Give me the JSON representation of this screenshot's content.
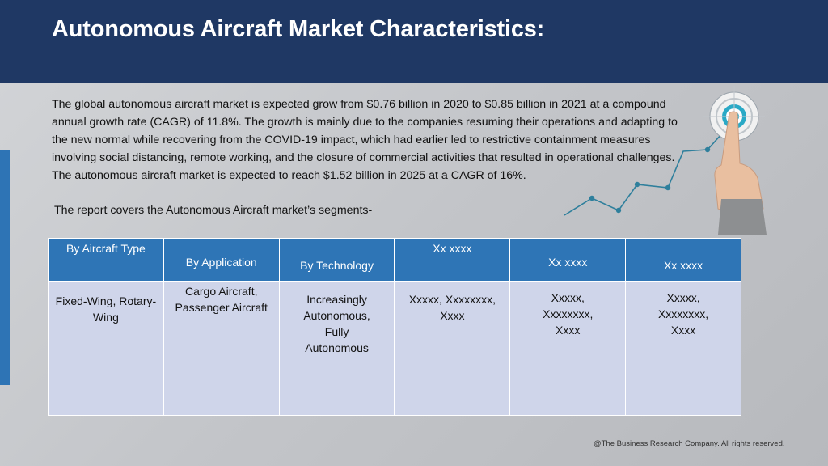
{
  "header": {
    "title": "Autonomous Aircraft Market Characteristics:"
  },
  "intro": {
    "paragraph": "The global autonomous aircraft market is expected grow from $0.76 billion in 2020 to $0.85 billion in 2021 at a compound annual growth rate (CAGR) of 11.8%. The growth is mainly due to the companies resuming their operations and adapting to the new normal while recovering from the COVID-19 impact, which had earlier led to restrictive containment measures involving social distancing, remote working, and the closure of commercial activities that resulted in operational challenges. The autonomous aircraft market is expected to reach $1.52 billion in 2025 at a CAGR of 16%.",
    "segments_note": "The report covers the Autonomous Aircraft market’s segments-"
  },
  "table": {
    "headers": [
      "By Aircraft Type",
      "By Application",
      "By Technology",
      "Xx xxxx",
      "Xx xxxx",
      "Xx xxxx"
    ],
    "cells": [
      "Fixed-Wing, Rotary-Wing",
      "Cargo Aircraft, Passenger Aircraft",
      "Increasingly Autonomous, Fully Autonomous",
      "Xxxxx, Xxxxxxxx, Xxxx",
      "Xxxxx, Xxxxxxxx, Xxxx",
      "Xxxxx, Xxxxxxxx, Xxxx"
    ]
  },
  "colors": {
    "header_bg": "#1f3864",
    "accent": "#2e75b6",
    "cell_bg": "#cfd5ea"
  },
  "icons": [
    "target-icon",
    "pointing-hand-icon",
    "growth-line-icon"
  ],
  "footer": {
    "copyright": "@The Business Research Company. All rights reserved."
  }
}
